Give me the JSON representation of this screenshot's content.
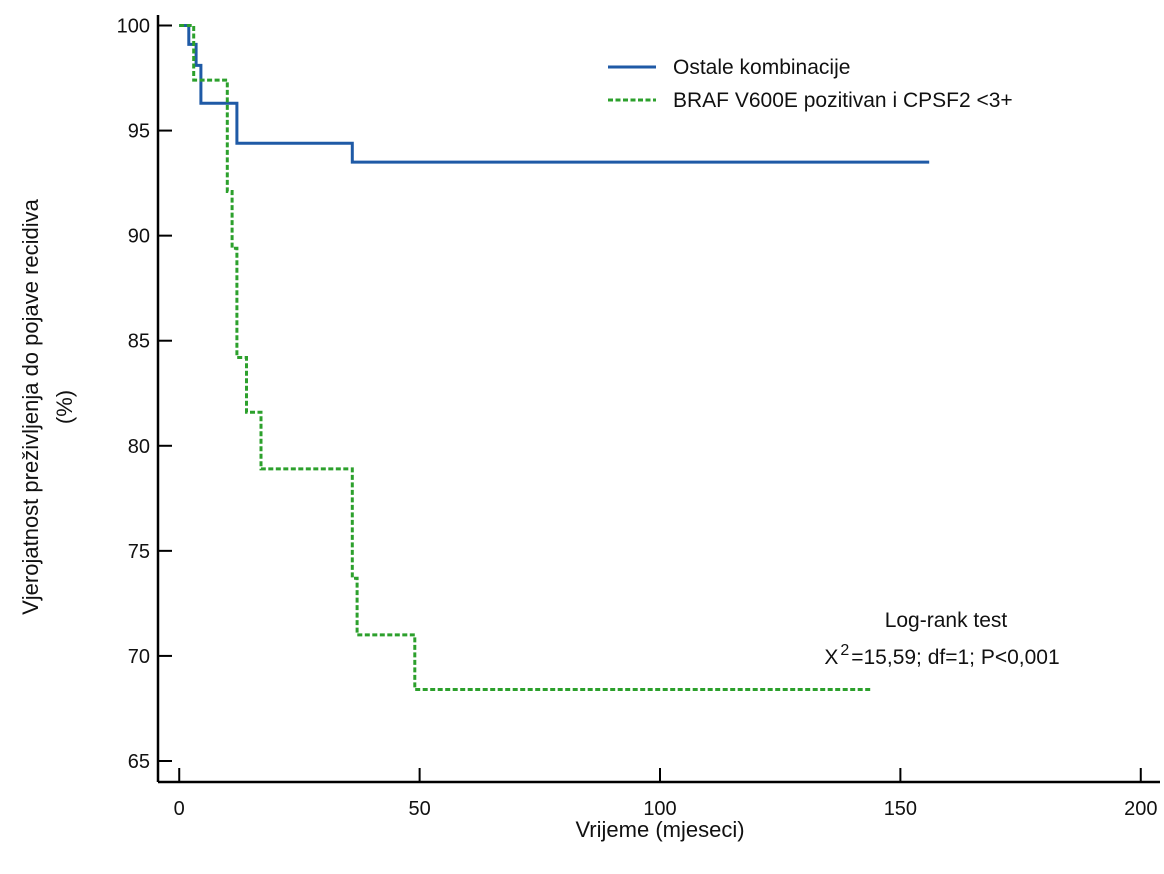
{
  "chart_data": {
    "type": "line",
    "subtype": "kaplan-meier step",
    "title": "",
    "xlabel": "Vrijeme (mjeseci)",
    "ylabel_line1": "Vjerojatnost preživljenja do pojave recidiva",
    "ylabel_line2": "(%)",
    "xlim": [
      -4,
      204
    ],
    "ylim": [
      64,
      100.5
    ],
    "x_ticks": [
      0,
      50,
      100,
      150,
      200
    ],
    "y_ticks": [
      65,
      70,
      75,
      80,
      85,
      90,
      95,
      100
    ],
    "grid": false,
    "legend_position": "top-right",
    "series": [
      {
        "name": "Ostale kombinacije",
        "color": "#1f5aa6",
        "style": "solid",
        "points": [
          [
            0,
            100
          ],
          [
            2,
            100
          ],
          [
            2,
            99.1
          ],
          [
            3.5,
            99.1
          ],
          [
            3.5,
            98.1
          ],
          [
            4.5,
            98.1
          ],
          [
            4.5,
            96.3
          ],
          [
            12,
            96.3
          ],
          [
            12,
            94.4
          ],
          [
            36,
            94.4
          ],
          [
            36,
            93.5
          ],
          [
            156,
            93.5
          ]
        ]
      },
      {
        "name": "BRAF V600E pozitivan i CPSF2 <3+",
        "color": "#2ca02c",
        "style": "dashed",
        "points": [
          [
            0,
            100
          ],
          [
            3,
            100
          ],
          [
            3,
            97.4
          ],
          [
            10,
            97.4
          ],
          [
            10,
            92.1
          ],
          [
            11,
            92.1
          ],
          [
            11,
            89.4
          ],
          [
            12,
            89.4
          ],
          [
            12,
            84.2
          ],
          [
            14,
            84.2
          ],
          [
            14,
            81.6
          ],
          [
            17,
            81.6
          ],
          [
            17,
            78.9
          ],
          [
            36,
            78.9
          ],
          [
            36,
            73.7
          ],
          [
            37,
            73.7
          ],
          [
            37,
            71.0
          ],
          [
            49,
            71.0
          ],
          [
            49,
            68.4
          ],
          [
            144,
            68.4
          ]
        ]
      }
    ],
    "annotation": {
      "line1": "Log-rank test",
      "prefix": "X",
      "superscript": "2",
      "rest": "=15,59; df=1; P<0,001"
    }
  }
}
